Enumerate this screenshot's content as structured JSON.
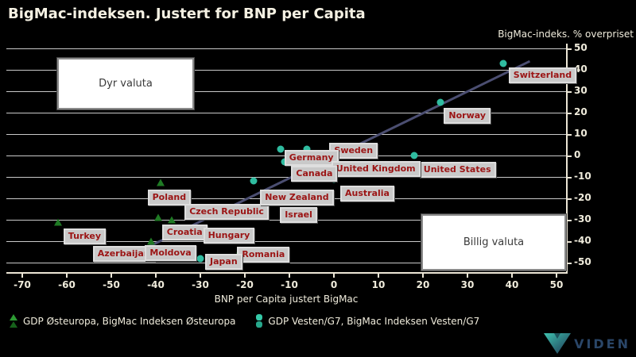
{
  "title": "BigMac-indeksen. Justert for BNP per Capita",
  "axis": {
    "y_label": "BigMac-indeks. % overpriset",
    "x_label": "BNP per Capita justert BigMac"
  },
  "annotations": {
    "expensive": "Dyr valuta",
    "cheap": "Billig valuta"
  },
  "logo": {
    "text": "VIDEN"
  },
  "colors": {
    "background": "#000000",
    "text": "#f0ecdc",
    "grid": "#c9c9c9",
    "axis": "#ece6d6",
    "east_marker_dark": "#1f7a24",
    "east_marker_light": "#2d9b33",
    "west_marker": "#2fbca0",
    "west_marker_light": "#35c9a8",
    "trend": "#4b4e71",
    "country_text": "#9b1414",
    "country_bg": "#c9c9c9",
    "note_bg": "#ffffff",
    "note_text": "#3a3a3a",
    "logo_text": "#2a4668",
    "logo_grad_start": "#3fc3b0",
    "logo_grad_end": "#1d3250"
  },
  "chart_data": {
    "type": "scatter",
    "title": "BigMac-indeksen. Justert for BNP per Capita",
    "xlabel": "BNP per Capita justert BigMac",
    "ylabel": "BigMac-indeks. % overpriset",
    "xlim": [
      -70,
      50
    ],
    "ylim": [
      -50,
      50
    ],
    "x_ticks": [
      -70,
      -60,
      -50,
      -40,
      -30,
      -20,
      -10,
      0,
      10,
      20,
      30,
      40,
      50
    ],
    "y_ticks": [
      50,
      40,
      30,
      20,
      10,
      0,
      -10,
      -20,
      -30,
      -40,
      -50
    ],
    "grid": "horizontal",
    "legend_position": "bottom-left",
    "trend_line": {
      "from": [
        -47,
        -48
      ],
      "to": [
        44,
        44
      ]
    },
    "series": [
      {
        "name": "GDP Østeuropa, BigMac Indeksen Østeuropa",
        "marker": "triangle",
        "color": "#1f7a24",
        "points": [
          {
            "label": "Poland",
            "x": -39,
            "y": -12.5,
            "dx": -16,
            "dy": 9
          },
          {
            "label": "Czech Republic",
            "x": -33,
            "y": -19,
            "dx": -3,
            "dy": 10
          },
          {
            "label": "Croatia",
            "x": -39.5,
            "y": -29,
            "dx": 5,
            "dy": 9
          },
          {
            "label": "Hungary",
            "x": -36.5,
            "y": -30,
            "dx": 40,
            "dy": 10
          },
          {
            "label": "Turkey",
            "x": -62,
            "y": -31,
            "dx": 7,
            "dy": 8
          },
          {
            "label": "Azerbaijan",
            "x": -52,
            "y": -38,
            "dx": -12,
            "dy": 11
          },
          {
            "label": "Moldova",
            "x": -41,
            "y": -40,
            "dx": -8,
            "dy": 5
          },
          {
            "label": "Romania",
            "x": -21,
            "y": -44,
            "dx": -4,
            "dy": -4
          }
        ]
      },
      {
        "name": "GDP Vesten/G7, BigMac Indeksen Vesten/G7",
        "marker": "circle",
        "color": "#2fbca0",
        "points": [
          {
            "label": "Switzerland",
            "x": 38,
            "y": 43,
            "dx": 7,
            "dy": 5
          },
          {
            "label": "Norway",
            "x": 24,
            "y": 25,
            "dx": 4,
            "dy": 7
          },
          {
            "label": "United States",
            "x": 18,
            "y": 0,
            "dx": 6,
            "dy": 8
          },
          {
            "label": "Sweden",
            "x": -6,
            "y": 3,
            "dx": 28,
            "dy": -8
          },
          {
            "label": "Germany",
            "x": -12,
            "y": 3,
            "dx": 5,
            "dy": 1
          },
          {
            "label": "United Kingdom",
            "x": -2,
            "y": -2,
            "dx": 8,
            "dy": 2
          },
          {
            "label": "Canada",
            "x": -11,
            "y": -3,
            "dx": 8,
            "dy": 5
          },
          {
            "label": "New Zealand",
            "x": -18,
            "y": -12,
            "dx": 8,
            "dy": 11
          },
          {
            "label": "Australia",
            "x": 0,
            "y": -11,
            "dx": 8,
            "dy": 8
          },
          {
            "label": "Israel",
            "x": -13,
            "y": -22,
            "dx": 5,
            "dy": 6
          },
          {
            "label": "Japan",
            "x": -30,
            "y": -48,
            "dx": 6,
            "dy": -6
          }
        ]
      }
    ]
  }
}
